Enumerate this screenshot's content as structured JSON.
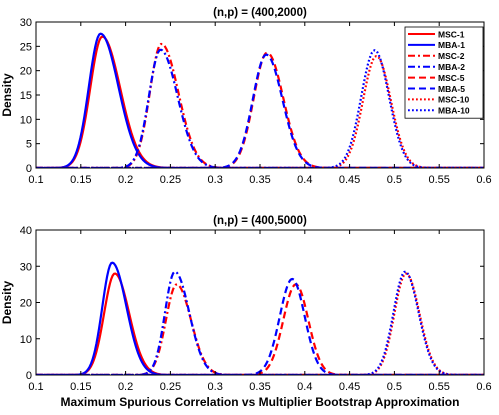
{
  "figure": {
    "xlabel": "Maximum Spurious Correlation vs Multiplier Bootstrap Approximation",
    "colors": {
      "msc": "#ff0000",
      "mba": "#0000ff"
    }
  },
  "chart_data": [
    {
      "type": "line",
      "title": "(n,p) = (400,2000)",
      "xlabel": "",
      "ylabel": "Density",
      "xlim": [
        0.1,
        0.6
      ],
      "ylim": [
        0,
        30
      ],
      "xticks": [
        "0.1",
        "0.15",
        "0.2",
        "0.25",
        "0.3",
        "0.35",
        "0.4",
        "0.45",
        "0.5",
        "0.55",
        "0.6"
      ],
      "yticks": [
        "0",
        "5",
        "10",
        "15",
        "20",
        "25",
        "30"
      ],
      "grid": false,
      "legend_position": "top-right",
      "series": [
        {
          "name": "MSC-1",
          "color": "#ff0000",
          "style": "solid",
          "peak_x": 0.174,
          "peak_y": 27.0,
          "sd_left": 0.0135,
          "sd_right": 0.02
        },
        {
          "name": "MBA-1",
          "color": "#0000ff",
          "style": "solid",
          "peak_x": 0.172,
          "peak_y": 27.6,
          "sd_left": 0.013,
          "sd_right": 0.02
        },
        {
          "name": "MSC-2",
          "color": "#ff0000",
          "style": "dashdot",
          "peak_x": 0.24,
          "peak_y": 25.5,
          "sd_left": 0.013,
          "sd_right": 0.019
        },
        {
          "name": "MBA-2",
          "color": "#0000ff",
          "style": "dashdot",
          "peak_x": 0.239,
          "peak_y": 24.3,
          "sd_left": 0.013,
          "sd_right": 0.019
        },
        {
          "name": "MSC-5",
          "color": "#ff0000",
          "style": "dashed",
          "peak_x": 0.358,
          "peak_y": 23.7,
          "sd_left": 0.015,
          "sd_right": 0.018
        },
        {
          "name": "MBA-5",
          "color": "#0000ff",
          "style": "dashed",
          "peak_x": 0.357,
          "peak_y": 23.3,
          "sd_left": 0.015,
          "sd_right": 0.018
        },
        {
          "name": "MSC-10",
          "color": "#ff0000",
          "style": "dotted",
          "peak_x": 0.48,
          "peak_y": 23.0,
          "sd_left": 0.015,
          "sd_right": 0.016
        },
        {
          "name": "MBA-10",
          "color": "#0000ff",
          "style": "dotted",
          "peak_x": 0.478,
          "peak_y": 24.2,
          "sd_left": 0.015,
          "sd_right": 0.016
        }
      ]
    },
    {
      "type": "line",
      "title": "(n,p) = (400,5000)",
      "xlabel": "Maximum Spurious Correlation vs Multiplier Bootstrap Approximation",
      "ylabel": "Density",
      "xlim": [
        0.1,
        0.6
      ],
      "ylim": [
        0,
        40
      ],
      "xticks": [
        "0.1",
        "0.15",
        "0.2",
        "0.25",
        "0.3",
        "0.35",
        "0.4",
        "0.45",
        "0.5",
        "0.55",
        "0.6"
      ],
      "yticks": [
        "0",
        "10",
        "20",
        "30",
        "40"
      ],
      "grid": false,
      "legend_position": "none",
      "series": [
        {
          "name": "MSC-1",
          "color": "#ff0000",
          "style": "solid",
          "peak_x": 0.188,
          "peak_y": 28.0,
          "sd_left": 0.012,
          "sd_right": 0.016
        },
        {
          "name": "MBA-1",
          "color": "#0000ff",
          "style": "solid",
          "peak_x": 0.185,
          "peak_y": 31.0,
          "sd_left": 0.011,
          "sd_right": 0.016
        },
        {
          "name": "MSC-2",
          "color": "#ff0000",
          "style": "dashdot",
          "peak_x": 0.257,
          "peak_y": 25.0,
          "sd_left": 0.012,
          "sd_right": 0.016
        },
        {
          "name": "MBA-2",
          "color": "#0000ff",
          "style": "dashdot",
          "peak_x": 0.255,
          "peak_y": 28.5,
          "sd_left": 0.011,
          "sd_right": 0.016
        },
        {
          "name": "MSC-5",
          "color": "#ff0000",
          "style": "dashed",
          "peak_x": 0.39,
          "peak_y": 25.0,
          "sd_left": 0.014,
          "sd_right": 0.014
        },
        {
          "name": "MBA-5",
          "color": "#0000ff",
          "style": "dashed",
          "peak_x": 0.386,
          "peak_y": 26.5,
          "sd_left": 0.014,
          "sd_right": 0.014
        },
        {
          "name": "MSC-10",
          "color": "#ff0000",
          "style": "dotted",
          "peak_x": 0.513,
          "peak_y": 28.0,
          "sd_left": 0.013,
          "sd_right": 0.015
        },
        {
          "name": "MBA-10",
          "color": "#0000ff",
          "style": "dotted",
          "peak_x": 0.512,
          "peak_y": 28.5,
          "sd_left": 0.013,
          "sd_right": 0.015
        }
      ]
    }
  ]
}
